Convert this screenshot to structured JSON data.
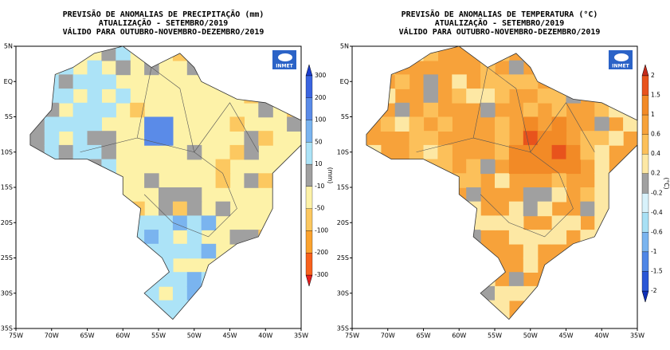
{
  "panels": [
    {
      "title": [
        "PREVISÃO DE ANOMALIAS DE PRECIPITAÇÃO (mm)",
        "ATUALIZAÇÃO - SETEMBRO/2019",
        "VÁLIDO PARA OUTUBRO-NOVEMBRO-DEZEMBRO/2019"
      ],
      "logo": "INMET",
      "colorbar": {
        "unit": "(mm)",
        "ticks": [
          "300",
          "200",
          "100",
          "50",
          "10",
          "-10",
          "-50",
          "-100",
          "-200",
          "-300"
        ],
        "colors": [
          "#1a3ccf",
          "#3a64e0",
          "#5a8be8",
          "#7ab4ef",
          "#ace3f7",
          "#a0a0a0",
          "#fdf2a8",
          "#fcc860",
          "#fba32f",
          "#f8611d",
          "#e81d1d"
        ]
      }
    },
    {
      "title": [
        "PREVISÃO DE ANOMALIAS DE TEMPERATURA (°C)",
        "ATUALIZAÇÃO - SETEMBRO/2019",
        "VÁLIDO PARA OUTUBRO-NOVEMBRO-DEZEMBRO/2019"
      ],
      "logo": "INMET",
      "colorbar": {
        "unit": "(°C)",
        "ticks": [
          "2",
          "1.5",
          "1",
          "0.6",
          "0.4",
          "0.2",
          "-0.2",
          "-0.4",
          "-0.6",
          "-1",
          "-1.5",
          "-2"
        ],
        "colors": [
          "#c42a1a",
          "#e8531c",
          "#f28a26",
          "#f7a23a",
          "#fcc05a",
          "#fde8a4",
          "#a0a0a0",
          "#d8f2fb",
          "#a8e0f5",
          "#7ab4ef",
          "#4f86e6",
          "#2a56d6",
          "#1030b8"
        ]
      }
    }
  ],
  "axes": {
    "lat": [
      "5N",
      "EQ",
      "5S",
      "10S",
      "15S",
      "20S",
      "25S",
      "30S",
      "35S"
    ],
    "lon": [
      "75W",
      "70W",
      "65W",
      "60W",
      "55W",
      "50W",
      "45W",
      "40W",
      "35W"
    ]
  }
}
